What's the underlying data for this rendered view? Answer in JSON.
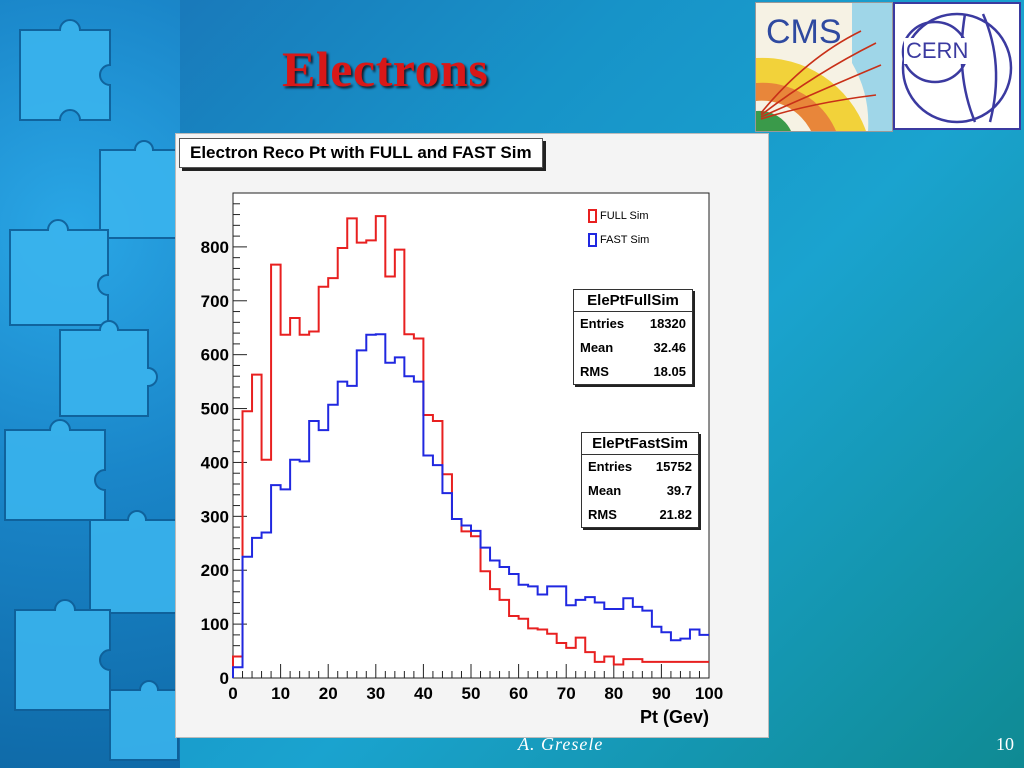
{
  "slide": {
    "title": "Electrons",
    "author": "A. Gresele",
    "page_number": "10"
  },
  "logos": {
    "cms": "CMS",
    "cern": "CERN"
  },
  "colors": {
    "full": "#e82020",
    "fast": "#2028e0",
    "title": "#d81818"
  },
  "stats": {
    "full": {
      "name": "ElePtFullSim",
      "rows": [
        {
          "label": "Entries",
          "value": "18320"
        },
        {
          "label": "Mean",
          "value": "32.46"
        },
        {
          "label": "RMS",
          "value": "18.05"
        }
      ]
    },
    "fast": {
      "name": "ElePtFastSim",
      "rows": [
        {
          "label": "Entries",
          "value": "15752"
        },
        {
          "label": "Mean",
          "value": "39.7"
        },
        {
          "label": "RMS",
          "value": "21.82"
        }
      ]
    }
  },
  "chart_data": {
    "type": "histogram",
    "title": "Electron Reco Pt with FULL and FAST Sim",
    "xlabel": "Pt (Gev)",
    "ylabel": "",
    "xlim": [
      0,
      100
    ],
    "ylim": [
      0,
      900
    ],
    "x_ticks": [
      0,
      10,
      20,
      30,
      40,
      50,
      60,
      70,
      80,
      90,
      100
    ],
    "y_ticks": [
      0,
      100,
      200,
      300,
      400,
      500,
      600,
      700,
      800
    ],
    "bin_width": 2,
    "bin_edges_start": 0,
    "legend_position": "top-right",
    "grid": false,
    "series": [
      {
        "name": "FULL Sim",
        "values": [
          40,
          495,
          563,
          405,
          767,
          637,
          668,
          637,
          643,
          726,
          742,
          798,
          853,
          808,
          812,
          857,
          745,
          795,
          638,
          630,
          488,
          477,
          378,
          295,
          272,
          263,
          198,
          165,
          145,
          115,
          110,
          92,
          90,
          82,
          65,
          56,
          75,
          48,
          30,
          40,
          25,
          35,
          35,
          30,
          30,
          30,
          30,
          30,
          30,
          30
        ]
      },
      {
        "name": "FAST Sim",
        "values": [
          20,
          225,
          260,
          270,
          358,
          350,
          405,
          402,
          477,
          460,
          507,
          550,
          542,
          608,
          637,
          638,
          585,
          595,
          560,
          550,
          413,
          395,
          343,
          295,
          283,
          273,
          242,
          218,
          206,
          193,
          173,
          170,
          155,
          170,
          170,
          135,
          145,
          150,
          140,
          128,
          128,
          148,
          132,
          125,
          95,
          85,
          70,
          73,
          90,
          80
        ]
      }
    ]
  }
}
